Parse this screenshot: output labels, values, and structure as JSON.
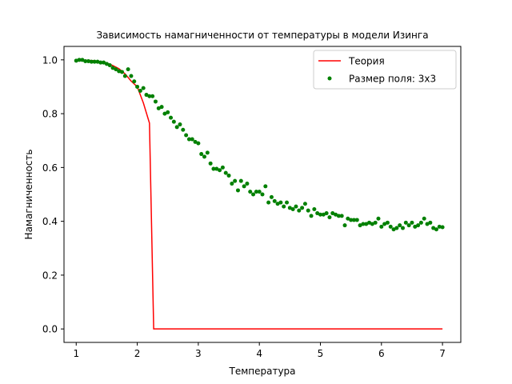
{
  "chart_data": {
    "type": "line",
    "title": "Зависимость намагниченности от температуры в модели Изинга",
    "xlabel": "Температура",
    "ylabel": "Намагниченность",
    "xlim": [
      0.8,
      7.3
    ],
    "ylim": [
      -0.05,
      1.05
    ],
    "xticks": [
      1,
      2,
      3,
      4,
      5,
      6,
      7
    ],
    "yticks": [
      0.0,
      0.2,
      0.4,
      0.6,
      0.8,
      1.0
    ],
    "xtick_labels": [
      "1",
      "2",
      "3",
      "4",
      "5",
      "6",
      "7"
    ],
    "ytick_labels": [
      "0.0",
      "0.2",
      "0.4",
      "0.6",
      "0.8",
      "1.0"
    ],
    "grid": false,
    "legend_position": "top-right",
    "series": [
      {
        "name": "Теория",
        "kind": "line",
        "color": "#ff0000",
        "x": [
          1.0,
          1.1,
          1.2,
          1.3,
          1.4,
          1.5,
          1.6,
          1.7,
          1.8,
          1.9,
          2.0,
          2.1,
          2.2,
          2.269,
          2.3,
          2.4,
          2.5,
          3.0,
          3.5,
          4.0,
          4.5,
          5.0,
          5.5,
          6.0,
          6.5,
          7.0
        ],
        "y": [
          0.999,
          0.999,
          0.998,
          0.997,
          0.993,
          0.988,
          0.979,
          0.967,
          0.948,
          0.921,
          0.9,
          0.84,
          0.765,
          0.0,
          0.0,
          0.0,
          0.0,
          0.0,
          0.0,
          0.0,
          0.0,
          0.0,
          0.0,
          0.0,
          0.0,
          0.0
        ]
      },
      {
        "name": "Размер поля: 3x3",
        "kind": "scatter",
        "color": "#008000",
        "x": [
          1.0,
          1.05,
          1.1,
          1.15,
          1.2,
          1.25,
          1.3,
          1.35,
          1.4,
          1.45,
          1.5,
          1.55,
          1.6,
          1.65,
          1.7,
          1.75,
          1.8,
          1.85,
          1.9,
          1.95,
          2.0,
          2.05,
          2.1,
          2.15,
          2.2,
          2.25,
          2.3,
          2.35,
          2.4,
          2.45,
          2.5,
          2.55,
          2.6,
          2.65,
          2.7,
          2.75,
          2.8,
          2.85,
          2.9,
          2.95,
          3.0,
          3.05,
          3.1,
          3.15,
          3.2,
          3.25,
          3.3,
          3.35,
          3.4,
          3.45,
          3.5,
          3.55,
          3.6,
          3.65,
          3.7,
          3.75,
          3.8,
          3.85,
          3.9,
          3.95,
          4.0,
          4.05,
          4.1,
          4.15,
          4.2,
          4.25,
          4.3,
          4.35,
          4.4,
          4.45,
          4.5,
          4.55,
          4.6,
          4.65,
          4.7,
          4.75,
          4.8,
          4.85,
          4.9,
          4.95,
          5.0,
          5.05,
          5.1,
          5.15,
          5.2,
          5.25,
          5.3,
          5.35,
          5.4,
          5.45,
          5.5,
          5.55,
          5.6,
          5.65,
          5.7,
          5.75,
          5.8,
          5.85,
          5.9,
          5.95,
          6.0,
          6.05,
          6.1,
          6.15,
          6.2,
          6.25,
          6.3,
          6.35,
          6.4,
          6.45,
          6.5,
          6.55,
          6.6,
          6.65,
          6.7,
          6.75,
          6.8,
          6.85,
          6.9,
          6.95,
          7.0
        ],
        "y": [
          0.997,
          1.0,
          1.0,
          0.995,
          0.995,
          0.993,
          0.993,
          0.993,
          0.99,
          0.99,
          0.985,
          0.98,
          0.97,
          0.965,
          0.958,
          0.955,
          0.94,
          0.965,
          0.94,
          0.92,
          0.9,
          0.885,
          0.895,
          0.87,
          0.865,
          0.865,
          0.845,
          0.82,
          0.825,
          0.8,
          0.805,
          0.785,
          0.77,
          0.75,
          0.76,
          0.74,
          0.72,
          0.705,
          0.705,
          0.695,
          0.69,
          0.65,
          0.64,
          0.655,
          0.615,
          0.595,
          0.595,
          0.59,
          0.6,
          0.58,
          0.57,
          0.54,
          0.55,
          0.515,
          0.55,
          0.53,
          0.54,
          0.51,
          0.5,
          0.51,
          0.51,
          0.5,
          0.53,
          0.47,
          0.49,
          0.475,
          0.465,
          0.47,
          0.455,
          0.47,
          0.45,
          0.445,
          0.455,
          0.44,
          0.45,
          0.465,
          0.44,
          0.42,
          0.445,
          0.43,
          0.425,
          0.425,
          0.43,
          0.415,
          0.43,
          0.425,
          0.42,
          0.42,
          0.385,
          0.41,
          0.405,
          0.405,
          0.405,
          0.385,
          0.39,
          0.39,
          0.395,
          0.39,
          0.395,
          0.41,
          0.38,
          0.39,
          0.395,
          0.38,
          0.37,
          0.375,
          0.385,
          0.375,
          0.395,
          0.385,
          0.395,
          0.38,
          0.385,
          0.395,
          0.41,
          0.39,
          0.395,
          0.375,
          0.37,
          0.38,
          0.378
        ]
      }
    ]
  }
}
